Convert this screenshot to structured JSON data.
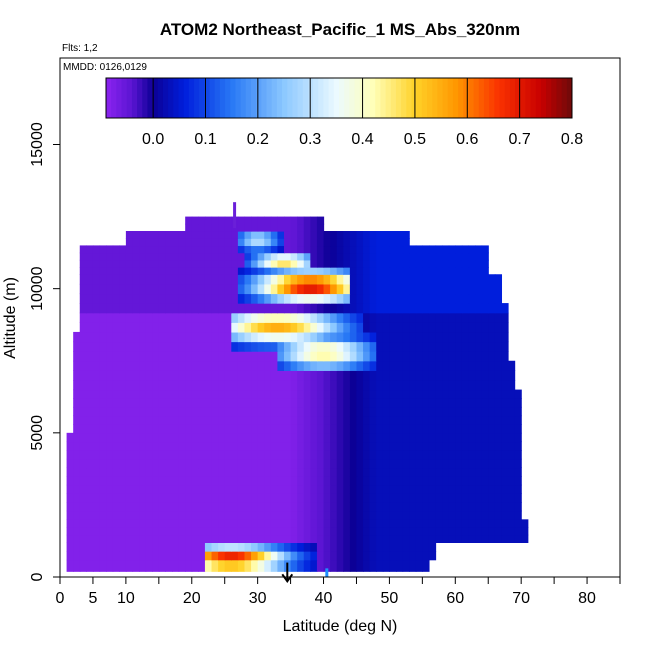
{
  "chart_data": {
    "type": "heatmap",
    "title": "ATOM2 Northeast_Pacific_1 MS_Abs_320nm",
    "flights_label": "Flts: 1,2",
    "dates_label": "MMDD: 0126,0129",
    "xlabel": "Latitude (deg N)",
    "ylabel": "Altitude (m)",
    "xlim": [
      0,
      85
    ],
    "ylim": [
      0,
      18000
    ],
    "x_ticks": [
      0,
      5,
      10,
      20,
      30,
      40,
      50,
      60,
      70,
      80
    ],
    "x_minor_ticks": [
      15,
      25,
      35,
      45,
      55,
      65,
      75,
      85
    ],
    "y_ticks": [
      0,
      5000,
      10000,
      15000
    ],
    "colorbar": {
      "ticks": [
        0.0,
        0.1,
        0.2,
        0.3,
        0.4,
        0.5,
        0.6,
        0.7,
        0.8
      ],
      "range": [
        -0.09,
        0.8
      ],
      "placement": "top, inside plot"
    },
    "altitude_bands": [
      {
        "alt": [
          200,
          600
        ],
        "lat": [
          1,
          56
        ]
      },
      {
        "alt": [
          600,
          1200
        ],
        "lat": [
          1,
          57
        ]
      },
      {
        "alt": [
          1200,
          2000
        ],
        "lat": [
          1,
          71
        ]
      },
      {
        "alt": [
          2000,
          3500
        ],
        "lat": [
          1,
          70
        ]
      },
      {
        "alt": [
          3500,
          5000
        ],
        "lat": [
          1,
          70
        ]
      },
      {
        "alt": [
          5000,
          6500
        ],
        "lat": [
          2,
          70
        ]
      },
      {
        "alt": [
          6500,
          7500
        ],
        "lat": [
          2,
          69
        ]
      },
      {
        "alt": [
          7500,
          8500
        ],
        "lat": [
          2,
          68
        ]
      },
      {
        "alt": [
          8500,
          9500
        ],
        "lat": [
          3,
          68
        ]
      },
      {
        "alt": [
          9500,
          10500
        ],
        "lat": [
          3,
          67
        ]
      },
      {
        "alt": [
          10500,
          11000
        ],
        "lat": [
          3,
          65
        ]
      },
      {
        "alt": [
          11000,
          11500
        ],
        "lat": [
          3,
          65
        ]
      },
      {
        "alt": [
          11500,
          12000
        ],
        "lat": [
          10,
          53
        ]
      },
      {
        "alt": [
          12000,
          12500
        ],
        "lat": [
          19,
          40
        ]
      }
    ],
    "plumes": [
      {
        "lat": [
          22,
          39
        ],
        "alt": [
          300,
          1200
        ],
        "peak_lat": 26,
        "peak_alt": 650,
        "peak_value": 0.72
      },
      {
        "lat": [
          26,
          46
        ],
        "alt": [
          8000,
          9200
        ],
        "peak_lat": 33,
        "peak_alt": 8700,
        "peak_value": 0.55
      },
      {
        "lat": [
          33,
          48
        ],
        "alt": [
          7200,
          8400
        ],
        "peak_lat": 40,
        "peak_alt": 7800,
        "peak_value": 0.45
      },
      {
        "lat": [
          27,
          44
        ],
        "alt": [
          9600,
          10700
        ],
        "peak_lat": 38,
        "peak_alt": 10100,
        "peak_value": 0.72
      },
      {
        "lat": [
          28,
          38
        ],
        "alt": [
          10700,
          11300
        ],
        "peak_lat": 34,
        "peak_alt": 10950,
        "peak_value": 0.5
      },
      {
        "lat": [
          27,
          34
        ],
        "alt": [
          11300,
          12100
        ],
        "peak_lat": 30,
        "peak_alt": 11700,
        "peak_value": 0.3
      }
    ],
    "north_background": {
      "lat_start": 35,
      "lat_full": 48,
      "value": 0.03
    },
    "south_background": {
      "value": -0.08
    },
    "markers": [
      {
        "type": "arrow",
        "lat": 34.5,
        "alt_top": 500,
        "alt_bottom": -150,
        "color": "#000000"
      },
      {
        "type": "bar",
        "lat": 40.5,
        "alt_top": 300,
        "alt_bottom": 0,
        "color": "#1e90ff"
      },
      {
        "type": "bar",
        "lat": 26.5,
        "alt_top": 13000,
        "alt_bottom": 12100,
        "color": "#6a1fd9"
      }
    ]
  }
}
